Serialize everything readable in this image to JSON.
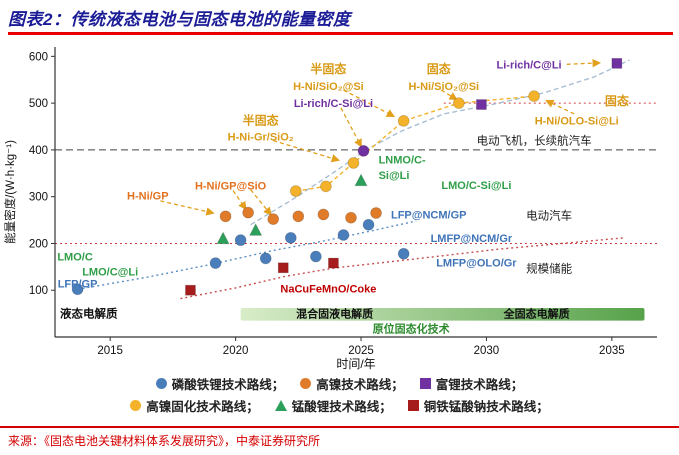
{
  "header": {
    "title": "图表2：传统液态电池与固态电池的能量密度"
  },
  "footer": {
    "source": "来源：《固态电池关键材料体系发展研究》，中泰证券研究所"
  },
  "colors": {
    "accent_red": "#e80000",
    "title_blue": "#1b1c96",
    "source_red": "#d40000"
  },
  "legend": {
    "rows": [
      [
        {
          "key": "lfp",
          "marker": "circle",
          "color": "#4a7ebb",
          "label": "磷酸铁锂技术路线；"
        },
        {
          "key": "high-nickel",
          "marker": "circle",
          "color": "#e07b2a",
          "label": "高镍技术路线；"
        },
        {
          "key": "li-rich",
          "marker": "square",
          "color": "#7030a0",
          "label": "富锂技术路线；"
        }
      ],
      [
        {
          "key": "high-nickel-solid",
          "marker": "circle",
          "color": "#f3b229",
          "label": "高镍固化技术路线；"
        },
        {
          "key": "lmo",
          "marker": "triangle",
          "color": "#2ca05a",
          "label": "锰酸锂技术路线；"
        },
        {
          "key": "na-cufemn",
          "marker": "square",
          "color": "#a61c1c",
          "label": "铜铁锰酸钠技术路线；"
        }
      ]
    ]
  },
  "chart_data": {
    "type": "scatter",
    "title": "",
    "xlabel": "时间/年",
    "ylabel": "能量密度/(W·h·kg⁻¹)",
    "xlim": [
      2012.8,
      2036.8
    ],
    "ylim": [
      0,
      620
    ],
    "xticks": [
      2015,
      2020,
      2025,
      2030,
      2035
    ],
    "yticks": [
      100,
      200,
      300,
      400,
      500,
      600
    ],
    "series": [
      {
        "key": "lfp",
        "name": "磷酸铁锂技术路线",
        "marker": "circle",
        "color": "#4a7ebb",
        "points": [
          [
            2013.7,
            102
          ],
          [
            2019.2,
            158
          ],
          [
            2020.2,
            207
          ],
          [
            2021.2,
            168
          ],
          [
            2022.2,
            212
          ],
          [
            2023.2,
            172
          ],
          [
            2024.3,
            218
          ],
          [
            2025.3,
            240
          ],
          [
            2026.7,
            178
          ]
        ]
      },
      {
        "key": "high-nickel",
        "name": "高镍技术路线",
        "marker": "circle",
        "color": "#e07b2a",
        "points": [
          [
            2019.6,
            258
          ],
          [
            2020.5,
            266
          ],
          [
            2021.5,
            252
          ],
          [
            2022.5,
            258
          ],
          [
            2023.5,
            262
          ],
          [
            2024.6,
            255
          ],
          [
            2025.6,
            265
          ]
        ]
      },
      {
        "key": "li-rich",
        "name": "富锂技术路线",
        "marker": "square",
        "color": "#7030a0",
        "points": [
          [
            2029.8,
            497
          ],
          [
            2035.2,
            585
          ]
        ]
      },
      {
        "key": "li-rich-dot",
        "name": "富锂技术路线",
        "marker": "circle",
        "color": "#7030a0",
        "points": [
          [
            2025.1,
            398
          ]
        ]
      },
      {
        "key": "high-nickel-solid",
        "name": "高镍固化技术路线",
        "marker": "circle",
        "color": "#f3b229",
        "points": [
          [
            2022.4,
            312
          ],
          [
            2023.6,
            322
          ],
          [
            2024.7,
            372
          ],
          [
            2026.7,
            462
          ],
          [
            2028.9,
            500
          ],
          [
            2031.9,
            515
          ]
        ]
      },
      {
        "key": "lmo",
        "name": "锰酸锂技术路线",
        "marker": "triangle",
        "color": "#2ca05a",
        "points": [
          [
            2019.5,
            210
          ],
          [
            2020.8,
            228
          ],
          [
            2025.0,
            334
          ]
        ]
      },
      {
        "key": "na-cufemn",
        "name": "铜铁锰酸钠技术路线",
        "marker": "square",
        "color": "#a61c1c",
        "points": [
          [
            2018.2,
            100
          ],
          [
            2021.9,
            148
          ],
          [
            2023.9,
            158
          ]
        ]
      }
    ],
    "ref_lines": [
      {
        "y": 400,
        "x1": 2012.8,
        "x2": 2036.8,
        "color": "#444444",
        "dash": "7 4"
      },
      {
        "y": 200,
        "x1": 2012.8,
        "x2": 2036.8,
        "color": "#d04040",
        "dash": "2 3"
      },
      {
        "y": 500,
        "x1": 2028.3,
        "x2": 2036.8,
        "color": "#d04040",
        "dash": "2 3"
      }
    ],
    "trend_lines": [
      {
        "color": "#5b8ec4",
        "dash": "2 3",
        "points": [
          [
            2013.7,
            102
          ],
          [
            2016.5,
            128
          ],
          [
            2019,
            155
          ],
          [
            2021.5,
            185
          ],
          [
            2023.5,
            205
          ],
          [
            2025.5,
            228
          ],
          [
            2027.2,
            248
          ]
        ]
      },
      {
        "color": "#c94f4f",
        "dash": "2 3",
        "points": [
          [
            2017.8,
            82
          ],
          [
            2020,
            105
          ],
          [
            2022,
            130
          ],
          [
            2024,
            148
          ],
          [
            2026,
            160
          ],
          [
            2028,
            172
          ],
          [
            2030.5,
            188
          ],
          [
            2033,
            200
          ],
          [
            2035.5,
            212
          ]
        ]
      },
      {
        "color": "#a9bfd4",
        "dash": "5 3",
        "points": [
          [
            2020.6,
            240
          ],
          [
            2022.3,
            295
          ],
          [
            2024,
            355
          ],
          [
            2025.2,
            400
          ],
          [
            2026.6,
            440
          ],
          [
            2028.3,
            477
          ],
          [
            2030.3,
            498
          ],
          [
            2032.3,
            522
          ],
          [
            2034.3,
            556
          ],
          [
            2035.7,
            592
          ]
        ]
      },
      {
        "color": "#f3b229",
        "dash": "4 3",
        "points": [
          [
            2022.4,
            312
          ],
          [
            2023.6,
            322
          ],
          [
            2024.7,
            372
          ],
          [
            2026.7,
            462
          ],
          [
            2028.9,
            500
          ],
          [
            2031.9,
            515
          ]
        ]
      }
    ],
    "arrows": [
      {
        "x1": 2017.0,
        "y1": 291,
        "x2": 2019.1,
        "y2": 265
      },
      {
        "x1": 2019.9,
        "y1": 313,
        "x2": 2020.4,
        "y2": 274
      },
      {
        "x1": 2020.6,
        "y1": 315,
        "x2": 2021.4,
        "y2": 262
      },
      {
        "x1": 2021.5,
        "y1": 420,
        "x2": 2024.1,
        "y2": 378
      },
      {
        "x1": 2024.3,
        "y1": 528,
        "x2": 2026.3,
        "y2": 472
      },
      {
        "x1": 2028.2,
        "y1": 528,
        "x2": 2028.8,
        "y2": 508
      },
      {
        "x1": 2024.2,
        "y1": 490,
        "x2": 2025.0,
        "y2": 408
      },
      {
        "x1": 2033.2,
        "y1": 583,
        "x2": 2034.5,
        "y2": 586
      },
      {
        "x1": 2033.5,
        "y1": 477,
        "x2": 2032.4,
        "y2": 505
      }
    ],
    "annotations": [
      {
        "t": "半固态",
        "x": 2023.7,
        "y": 573,
        "c": "#d99a17",
        "b": 1,
        "fs": 12
      },
      {
        "t": "H-Ni/SiO₂@Si",
        "x": 2023.7,
        "y": 537,
        "c": "#d99a17",
        "b": 1
      },
      {
        "t": "固态",
        "x": 2028.1,
        "y": 573,
        "c": "#d99a17",
        "b": 1,
        "fs": 12
      },
      {
        "t": "H-Ni/SiO₂@Si",
        "x": 2028.3,
        "y": 537,
        "c": "#d99a17",
        "b": 1
      },
      {
        "t": "Li-rich/C@Li",
        "x": 2031.7,
        "y": 583,
        "c": "#7030a0",
        "b": 1
      },
      {
        "t": "固态",
        "x": 2035.2,
        "y": 505,
        "c": "#d99a17",
        "b": 1,
        "fs": 12
      },
      {
        "t": "H-Ni/OLO-Si@Li",
        "x": 2033.6,
        "y": 463,
        "c": "#d99a17",
        "b": 1
      },
      {
        "t": "电动飞机，长续航汽车",
        "x": 2031.9,
        "y": 420,
        "c": "#1f1f1f",
        "fs": 11.5
      },
      {
        "t": "Li-rich/C-Si@Li",
        "x": 2023.9,
        "y": 500,
        "c": "#7030a0",
        "b": 1
      },
      {
        "t": "半固态",
        "x": 2021.0,
        "y": 463,
        "c": "#d99a17",
        "b": 1,
        "fs": 12
      },
      {
        "t": "H-Ni-Gr/SiO₂",
        "x": 2021.0,
        "y": 429,
        "c": "#d99a17",
        "b": 1
      },
      {
        "t": "LNMO/C-",
        "x": 2025.7,
        "y": 380,
        "c": "#2f9e48",
        "b": 1,
        "a": "s"
      },
      {
        "t": "Si@Li",
        "x": 2025.7,
        "y": 346,
        "c": "#2f9e48",
        "b": 1,
        "a": "s"
      },
      {
        "t": "H-Ni/GP@SiO",
        "x": 2019.8,
        "y": 324,
        "c": "#e2711d",
        "b": 1
      },
      {
        "t": "H-Ni/GP",
        "x": 2016.5,
        "y": 302,
        "c": "#e2711d",
        "b": 1
      },
      {
        "t": "LMO/C-Si@Li",
        "x": 2029.6,
        "y": 325,
        "c": "#2f9e48",
        "b": 1
      },
      {
        "t": "LFP@NCM/GP",
        "x": 2027.7,
        "y": 262,
        "c": "#3f74b8",
        "b": 1
      },
      {
        "t": "电动汽车",
        "x": 2032.5,
        "y": 260,
        "c": "#1f1f1f",
        "fs": 11.5
      },
      {
        "t": "LMFP@NCM/Gr",
        "x": 2029.4,
        "y": 212,
        "c": "#3f74b8",
        "b": 1
      },
      {
        "t": "LMFP@OLO/Gr",
        "x": 2029.6,
        "y": 159,
        "c": "#3f74b8",
        "b": 1
      },
      {
        "t": "规模储能",
        "x": 2032.5,
        "y": 146,
        "c": "#1f1f1f",
        "fs": 11.5
      },
      {
        "t": "LMO/C",
        "x": 2013.6,
        "y": 172,
        "c": "#2f9e48",
        "b": 1
      },
      {
        "t": "LMO/C@Li",
        "x": 2015.0,
        "y": 140,
        "c": "#2f9e48",
        "b": 1
      },
      {
        "t": "LFP/GP",
        "x": 2013.7,
        "y": 114,
        "c": "#3f74b8",
        "b": 1
      },
      {
        "t": "NaCuFeMnO/Coke",
        "x": 2023.7,
        "y": 104,
        "c": "#c00000",
        "b": 1
      }
    ],
    "zones": {
      "liquid_label": "液态电解质",
      "banner": {
        "x1": 2020.2,
        "x2": 2036.3,
        "split": 2027.7,
        "label_left": "混合固液电解质",
        "label_right": "全固态电解质",
        "color_left": "#d8ecc8",
        "color_right": "#57a24a"
      },
      "insitu_label": "原位固态化技术"
    }
  }
}
